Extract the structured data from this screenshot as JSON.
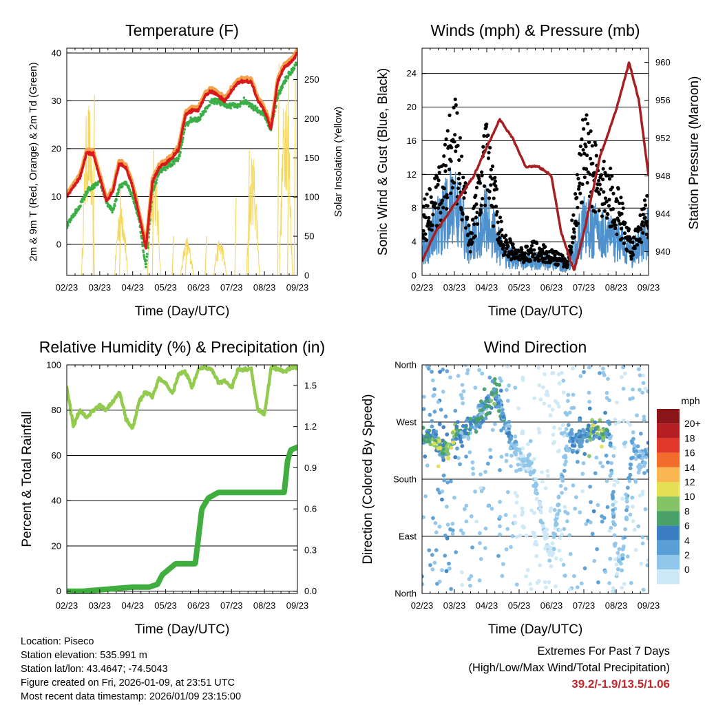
{
  "footer": {
    "location": "Location: Piseco",
    "elevation": "Station elevation: 535.991 m",
    "latlon": "Station lat/lon: 43.4647; -74.5043",
    "created": "Figure created on Fri, 2026-01-09, at 23:51 UTC",
    "recent": "Most recent data timestamp: 2026/01/09 23:15:00"
  },
  "extremes": {
    "title": "Extremes For Past 7 Days",
    "subtitle": "(High/Low/Max Wind/Total Precipitation)",
    "values": "39.2/-1.9/13.5/1.06"
  },
  "colors": {
    "temp_red": "#d7191c",
    "temp_orange": "#f4a04a",
    "dew_green": "#3cae48",
    "solar_yellow": "#f4d862",
    "gust_black": "#000000",
    "wind_blue": "#4f91cc",
    "pressure_maroon": "#a51f23",
    "rh_lightgreen": "#92cb4e",
    "precip_green": "#3fae3f",
    "extremes_red": "#c0282d"
  },
  "chart_data": [
    {
      "type": "line",
      "title": "Temperature (F)",
      "xlabel": "Time (Day/UTC)",
      "ylabel": "2m & 9m T (Red, Orange) & 2m Td (Green)",
      "y2label": "Solar Insolation (Yellow)",
      "x_ticks": [
        "02/23",
        "03/23",
        "04/23",
        "05/23",
        "06/23",
        "07/23",
        "08/23",
        "09/23"
      ],
      "xlim": [
        0,
        7
      ],
      "ylim": [
        -6.5,
        41
      ],
      "y_ticks": [
        0,
        10,
        20,
        30,
        40
      ],
      "y2lim": [
        0,
        290
      ],
      "y2_ticks": [
        0,
        50,
        100,
        150,
        200,
        250
      ],
      "grid": "horizontal",
      "series": [
        {
          "name": "2m T",
          "color": "#d7191c",
          "x": [
            0,
            0.2,
            0.4,
            0.6,
            0.8,
            1.0,
            1.2,
            1.4,
            1.6,
            1.8,
            2.0,
            2.2,
            2.4,
            2.6,
            2.8,
            3.0,
            3.2,
            3.4,
            3.6,
            3.8,
            4.0,
            4.2,
            4.4,
            4.6,
            4.8,
            5.0,
            5.2,
            5.4,
            5.6,
            5.8,
            6.0,
            6.2,
            6.4,
            6.6,
            6.8,
            7.0
          ],
          "values": [
            10,
            12,
            14,
            19,
            19,
            14,
            9,
            11,
            17,
            16,
            12,
            6,
            -1,
            13,
            16,
            17,
            18,
            20,
            27,
            28,
            28,
            31,
            32,
            31,
            30,
            32,
            34,
            34,
            34,
            30,
            28,
            24,
            34,
            37,
            38,
            40
          ]
        },
        {
          "name": "2m Td",
          "color": "#3cae48",
          "x": [
            0,
            0.2,
            0.4,
            0.6,
            0.8,
            1.0,
            1.2,
            1.4,
            1.6,
            1.8,
            2.0,
            2.2,
            2.4,
            2.6,
            2.8,
            3.0,
            3.2,
            3.4,
            3.6,
            3.8,
            4.0,
            4.2,
            4.4,
            4.6,
            4.8,
            5.0,
            5.2,
            5.4,
            5.6,
            5.8,
            6.0,
            6.2,
            6.4,
            6.6,
            6.8,
            7.0
          ],
          "values": [
            4,
            6,
            8,
            11,
            12,
            13,
            9,
            7,
            12,
            13,
            10,
            5,
            -5,
            11,
            15,
            16,
            17,
            18,
            25,
            26,
            26,
            28,
            30,
            30,
            29,
            29,
            29,
            30,
            29,
            28,
            27,
            24,
            31,
            34,
            36,
            38
          ]
        },
        {
          "name": "Solar Insolation",
          "color": "#f4d862",
          "axis": "y2",
          "peaks": [
            [
              0.8,
              230
            ],
            [
              1.6,
              110
            ],
            [
              2.6,
              160
            ],
            [
              3.2,
              50
            ],
            [
              3.6,
              40
            ],
            [
              4.2,
              50
            ],
            [
              5.1,
              100
            ],
            [
              5.5,
              160
            ],
            [
              6.4,
              270
            ],
            [
              6.7,
              260
            ],
            [
              6.9,
              250
            ]
          ]
        }
      ]
    },
    {
      "type": "scatter",
      "title": "Winds (mph) & Pressure (mb)",
      "xlabel": "Time (Day/UTC)",
      "ylabel": "Sonic Wind & Gust (Blue, Black)",
      "y2label": "Station Pressure (Maroon)",
      "x_ticks": [
        "02/23",
        "03/23",
        "04/23",
        "05/23",
        "06/23",
        "07/23",
        "08/23",
        "09/23"
      ],
      "xlim": [
        0,
        7
      ],
      "ylim": [
        0,
        27
      ],
      "y_ticks": [
        0,
        4,
        8,
        12,
        16,
        20,
        24
      ],
      "y2lim": [
        937.5,
        961.5
      ],
      "y2_ticks": [
        940,
        944,
        948,
        952,
        956,
        960
      ],
      "grid": "horizontal",
      "series": [
        {
          "name": "Wind (blue)",
          "color": "#4f91cc",
          "x": [
            0,
            0.5,
            1.0,
            1.5,
            2.0,
            2.5,
            3.0,
            3.5,
            4.0,
            4.5,
            5.0,
            5.5,
            6.0,
            6.5,
            7.0
          ],
          "values": [
            3,
            7,
            10,
            4,
            8,
            3,
            2,
            2,
            2,
            1,
            7,
            6,
            5,
            3,
            6
          ]
        },
        {
          "name": "Gust (black)",
          "color": "#000000",
          "x": [
            0,
            0.5,
            1.0,
            1.5,
            2.0,
            2.5,
            3.0,
            3.5,
            4.0,
            4.5,
            5.0,
            5.5,
            6.0,
            6.5,
            7.0
          ],
          "values": [
            8,
            12,
            21,
            6,
            18,
            5,
            3,
            4,
            3,
            2,
            19,
            15,
            11,
            4,
            10
          ]
        },
        {
          "name": "Station Pressure",
          "color": "#a51f23",
          "axis": "y2",
          "x": [
            0,
            0.4,
            0.8,
            1.2,
            1.6,
            2.0,
            2.4,
            2.8,
            3.2,
            3.6,
            4.0,
            4.3,
            4.7,
            5.0,
            5.5,
            6.0,
            6.4,
            6.7,
            7.0
          ],
          "values": [
            939,
            942,
            944,
            946,
            948,
            951,
            954,
            952,
            949,
            949,
            948,
            942,
            938,
            942,
            950,
            955,
            960,
            956,
            948
          ]
        }
      ]
    },
    {
      "type": "line",
      "title": "Relative Humidity (%) & Precipitation (in)",
      "xlabel": "Time (Day/UTC)",
      "ylabel": "Percent & Total Rainfall",
      "x_ticks": [
        "02/23",
        "03/23",
        "04/23",
        "05/23",
        "06/23",
        "07/23",
        "08/23",
        "09/23"
      ],
      "xlim": [
        0,
        7
      ],
      "ylim": [
        -1,
        100
      ],
      "y_ticks": [
        0,
        20,
        40,
        60,
        80,
        100
      ],
      "y2lim": [
        -0.0165,
        1.65
      ],
      "y2_ticks": [
        "0.0",
        "0.3",
        "0.6",
        "0.9",
        "1.2",
        "1.5"
      ],
      "grid": "horizontal",
      "series": [
        {
          "name": "Relative Humidity",
          "color": "#92cb4e",
          "x": [
            0,
            0.2,
            0.4,
            0.6,
            0.8,
            1.0,
            1.2,
            1.4,
            1.6,
            1.8,
            2.0,
            2.2,
            2.4,
            2.6,
            2.8,
            3.0,
            3.2,
            3.4,
            3.6,
            3.8,
            4.0,
            4.2,
            4.4,
            4.6,
            4.8,
            5.0,
            5.2,
            5.4,
            5.6,
            5.8,
            6.0,
            6.2,
            6.4,
            6.6,
            6.8,
            7.0
          ],
          "values": [
            90,
            73,
            80,
            77,
            80,
            82,
            80,
            84,
            88,
            76,
            72,
            84,
            88,
            86,
            94,
            92,
            87,
            96,
            97,
            90,
            98,
            99,
            98,
            92,
            93,
            90,
            98,
            98,
            98,
            80,
            78,
            99,
            98,
            97,
            99,
            99
          ]
        },
        {
          "name": "Total Precipitation",
          "color": "#3fae3f",
          "axis": "y2",
          "x": [
            0,
            0.5,
            1.0,
            1.5,
            2.0,
            2.5,
            2.75,
            2.9,
            3.3,
            3.9,
            4.1,
            4.3,
            4.6,
            5.0,
            5.5,
            6.0,
            6.6,
            6.7,
            6.8,
            7.0
          ],
          "values": [
            0,
            0,
            0.01,
            0.02,
            0.03,
            0.03,
            0.05,
            0.12,
            0.2,
            0.2,
            0.6,
            0.68,
            0.72,
            0.72,
            0.72,
            0.72,
            0.72,
            0.95,
            1.03,
            1.05
          ]
        }
      ]
    },
    {
      "type": "scatter",
      "title": "Wind Direction",
      "xlabel": "Time (Day/UTC)",
      "ylabel": "Direction (Colored By Speed)",
      "x_ticks": [
        "02/23",
        "03/23",
        "04/23",
        "05/23",
        "06/23",
        "07/23",
        "08/23",
        "09/23"
      ],
      "xlim": [
        0,
        7
      ],
      "ylim": [
        0,
        360
      ],
      "y_ticks": [
        "North",
        "East",
        "South",
        "West",
        "North"
      ],
      "y_tick_values": [
        0,
        90,
        180,
        270,
        360
      ],
      "grid": "horizontal",
      "colorbar": {
        "title": "mph",
        "labels": [
          "0",
          "2",
          "4",
          "6",
          "8",
          "10",
          "12",
          "14",
          "16",
          "18",
          "20+"
        ],
        "colors": [
          "#cde8f6",
          "#90c6ea",
          "#5a9fd6",
          "#3b7fc2",
          "#4aa167",
          "#84c466",
          "#e5df55",
          "#f9b651",
          "#f26d2c",
          "#e2382b",
          "#b51f24",
          "#8a1518"
        ]
      },
      "series": [
        {
          "name": "Direction",
          "x": [
            0.2,
            0.4,
            0.6,
            0.8,
            1.1,
            1.2,
            2.1,
            2.2,
            3.0,
            3.4,
            3.8,
            4.0,
            4.5,
            5.1,
            5.3,
            5.6,
            5.8,
            6.0,
            6.2,
            6.5,
            6.7,
            6.9
          ],
          "values": [
            250,
            240,
            230,
            220,
            260,
            245,
            300,
            320,
            210,
            200,
            90,
            60,
            240,
            250,
            260,
            245,
            255,
            40,
            60,
            230,
            210,
            220
          ],
          "speeds": [
            8,
            10,
            12,
            11,
            9,
            6,
            8,
            10,
            2,
            2,
            1,
            1,
            4,
            8,
            12,
            10,
            6,
            2,
            3,
            4,
            3,
            5
          ]
        }
      ]
    }
  ]
}
